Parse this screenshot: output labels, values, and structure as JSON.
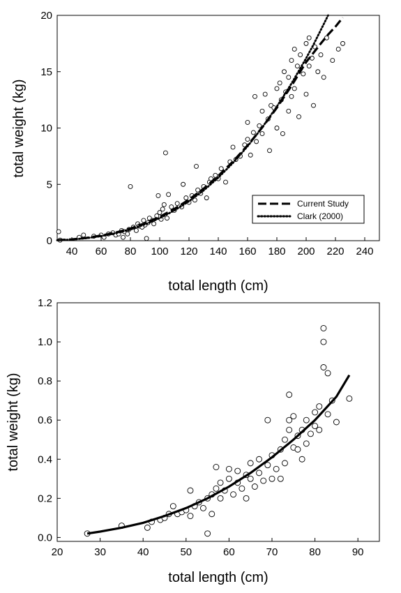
{
  "chart_data": [
    {
      "type": "scatter",
      "xlabel": "total length (cm)",
      "ylabel": "total weight (kg)",
      "xlim": [
        30,
        250
      ],
      "ylim": [
        0,
        20
      ],
      "xticks": [
        "40",
        "60",
        "80",
        "100",
        "120",
        "140",
        "160",
        "180",
        "200",
        "220",
        "240"
      ],
      "yticks": [
        "0",
        "5",
        "10",
        "15",
        "20"
      ],
      "legend_position": "bottom-right",
      "series": [
        {
          "name": "Current Study",
          "style": "dashed",
          "points": [
            [
              30,
              0.05
            ],
            [
              40,
              0.12
            ],
            [
              50,
              0.25
            ],
            [
              60,
              0.45
            ],
            [
              70,
              0.72
            ],
            [
              80,
              1.08
            ],
            [
              90,
              1.55
            ],
            [
              100,
              2.12
            ],
            [
              110,
              2.82
            ],
            [
              120,
              3.65
            ],
            [
              130,
              4.62
            ],
            [
              140,
              5.75
            ],
            [
              150,
              7.02
            ],
            [
              160,
              8.45
            ],
            [
              170,
              10.05
            ],
            [
              180,
              11.8
            ],
            [
              190,
              13.75
            ],
            [
              200,
              15.85
            ],
            [
              210,
              17.5
            ],
            [
              215,
              18.3
            ],
            [
              220,
              19.0
            ],
            [
              225,
              19.8
            ]
          ]
        },
        {
          "name": "Clark (2000)",
          "style": "dotted",
          "points": [
            [
              30,
              0.04
            ],
            [
              40,
              0.1
            ],
            [
              50,
              0.22
            ],
            [
              60,
              0.4
            ],
            [
              70,
              0.66
            ],
            [
              80,
              1.0
            ],
            [
              90,
              1.45
            ],
            [
              100,
              2.0
            ],
            [
              110,
              2.68
            ],
            [
              120,
              3.5
            ],
            [
              130,
              4.46
            ],
            [
              140,
              5.6
            ],
            [
              150,
              6.9
            ],
            [
              160,
              8.38
            ],
            [
              170,
              10.05
            ],
            [
              180,
              11.9
            ],
            [
              190,
              13.95
            ],
            [
              200,
              16.2
            ],
            [
              205,
              17.4
            ],
            [
              210,
              18.7
            ],
            [
              215,
              20.0
            ]
          ]
        },
        {
          "name": "observations",
          "style": "open-circles",
          "points": [
            [
              31,
              0.8
            ],
            [
              32,
              0.05
            ],
            [
              45,
              0.3
            ],
            [
              48,
              0.5
            ],
            [
              55,
              0.4
            ],
            [
              60,
              0.5
            ],
            [
              62,
              0.3
            ],
            [
              65,
              0.6
            ],
            [
              68,
              0.7
            ],
            [
              70,
              0.5
            ],
            [
              72,
              0.6
            ],
            [
              74,
              0.9
            ],
            [
              75,
              0.3
            ],
            [
              76,
              0.8
            ],
            [
              78,
              0.6
            ],
            [
              79,
              1.0
            ],
            [
              80,
              4.8
            ],
            [
              82,
              1.2
            ],
            [
              84,
              0.9
            ],
            [
              85,
              1.5
            ],
            [
              86,
              1.3
            ],
            [
              88,
              1.2
            ],
            [
              89,
              1.8
            ],
            [
              90,
              1.4
            ],
            [
              91,
              0.2
            ],
            [
              92,
              1.6
            ],
            [
              93,
              2.0
            ],
            [
              95,
              1.8
            ],
            [
              96,
              1.5
            ],
            [
              98,
              2.2
            ],
            [
              99,
              4.0
            ],
            [
              100,
              2.5
            ],
            [
              101,
              1.9
            ],
            [
              102,
              2.8
            ],
            [
              103,
              3.2
            ],
            [
              104,
              7.8
            ],
            [
              105,
              2.0
            ],
            [
              106,
              4.1
            ],
            [
              108,
              3.0
            ],
            [
              110,
              2.7
            ],
            [
              112,
              3.3
            ],
            [
              115,
              3.0
            ],
            [
              116,
              5.0
            ],
            [
              118,
              3.8
            ],
            [
              120,
              3.4
            ],
            [
              122,
              4.0
            ],
            [
              124,
              3.6
            ],
            [
              125,
              6.6
            ],
            [
              126,
              4.5
            ],
            [
              128,
              4.2
            ],
            [
              130,
              4.8
            ],
            [
              132,
              3.8
            ],
            [
              134,
              5.2
            ],
            [
              135,
              5.5
            ],
            [
              138,
              5.8
            ],
            [
              140,
              5.5
            ],
            [
              142,
              6.4
            ],
            [
              145,
              5.2
            ],
            [
              148,
              7.0
            ],
            [
              150,
              8.3
            ],
            [
              152,
              7.2
            ],
            [
              155,
              7.5
            ],
            [
              158,
              8.5
            ],
            [
              160,
              9.0
            ],
            [
              160,
              10.5
            ],
            [
              162,
              7.6
            ],
            [
              164,
              9.6
            ],
            [
              165,
              12.8
            ],
            [
              166,
              8.8
            ],
            [
              168,
              10.2
            ],
            [
              170,
              11.5
            ],
            [
              170,
              9.5
            ],
            [
              172,
              13.0
            ],
            [
              174,
              10.8
            ],
            [
              175,
              8.0
            ],
            [
              176,
              12.0
            ],
            [
              178,
              11.8
            ],
            [
              180,
              13.5
            ],
            [
              180,
              10.0
            ],
            [
              182,
              14.0
            ],
            [
              183,
              12.5
            ],
            [
              184,
              9.5
            ],
            [
              185,
              15.0
            ],
            [
              186,
              13.2
            ],
            [
              188,
              11.5
            ],
            [
              188,
              14.5
            ],
            [
              190,
              16.0
            ],
            [
              190,
              12.8
            ],
            [
              192,
              17.0
            ],
            [
              192,
              13.5
            ],
            [
              194,
              15.5
            ],
            [
              195,
              11.0
            ],
            [
              196,
              16.5
            ],
            [
              198,
              14.8
            ],
            [
              200,
              17.5
            ],
            [
              200,
              13.0
            ],
            [
              202,
              18.0
            ],
            [
              202,
              15.5
            ],
            [
              204,
              16.2
            ],
            [
              205,
              12.0
            ],
            [
              206,
              17.2
            ],
            [
              208,
              15.0
            ],
            [
              210,
              16.5
            ],
            [
              212,
              14.5
            ],
            [
              214,
              18.0
            ],
            [
              218,
              16.0
            ],
            [
              222,
              17.0
            ],
            [
              225,
              17.5
            ]
          ]
        }
      ]
    },
    {
      "type": "scatter",
      "xlabel": "total length (cm)",
      "ylabel": "total weight (kg)",
      "xlim": [
        20,
        95
      ],
      "ylim": [
        -0.02,
        1.2
      ],
      "xticks": [
        "20",
        "30",
        "40",
        "50",
        "60",
        "70",
        "80",
        "90"
      ],
      "yticks": [
        "0.0",
        "0.2",
        "0.4",
        "0.6",
        "0.8",
        "1.0",
        "1.2"
      ],
      "series": [
        {
          "name": "fit",
          "style": "solid",
          "points": [
            [
              27,
              0.02
            ],
            [
              30,
              0.03
            ],
            [
              35,
              0.05
            ],
            [
              40,
              0.075
            ],
            [
              45,
              0.11
            ],
            [
              50,
              0.15
            ],
            [
              55,
              0.2
            ],
            [
              60,
              0.26
            ],
            [
              65,
              0.33
            ],
            [
              70,
              0.41
            ],
            [
              75,
              0.5
            ],
            [
              80,
              0.6
            ],
            [
              85,
              0.72
            ],
            [
              88,
              0.83
            ]
          ]
        },
        {
          "name": "observations",
          "style": "open-circles",
          "points": [
            [
              27,
              0.02
            ],
            [
              35,
              0.06
            ],
            [
              41,
              0.05
            ],
            [
              42,
              0.08
            ],
            [
              44,
              0.09
            ],
            [
              45,
              0.1
            ],
            [
              46,
              0.12
            ],
            [
              47,
              0.16
            ],
            [
              48,
              0.12
            ],
            [
              49,
              0.13
            ],
            [
              50,
              0.14
            ],
            [
              51,
              0.24
            ],
            [
              51,
              0.11
            ],
            [
              52,
              0.16
            ],
            [
              53,
              0.18
            ],
            [
              54,
              0.15
            ],
            [
              55,
              0.02
            ],
            [
              55,
              0.2
            ],
            [
              56,
              0.22
            ],
            [
              56,
              0.12
            ],
            [
              57,
              0.25
            ],
            [
              57,
              0.36
            ],
            [
              58,
              0.2
            ],
            [
              58,
              0.28
            ],
            [
              59,
              0.24
            ],
            [
              60,
              0.3
            ],
            [
              60,
              0.35
            ],
            [
              61,
              0.22
            ],
            [
              62,
              0.28
            ],
            [
              62,
              0.34
            ],
            [
              63,
              0.25
            ],
            [
              64,
              0.32
            ],
            [
              64,
              0.2
            ],
            [
              65,
              0.3
            ],
            [
              65,
              0.38
            ],
            [
              66,
              0.26
            ],
            [
              67,
              0.33
            ],
            [
              67,
              0.4
            ],
            [
              68,
              0.29
            ],
            [
              69,
              0.37
            ],
            [
              69,
              0.6
            ],
            [
              70,
              0.3
            ],
            [
              70,
              0.42
            ],
            [
              71,
              0.35
            ],
            [
              72,
              0.45
            ],
            [
              72,
              0.3
            ],
            [
              73,
              0.38
            ],
            [
              73,
              0.5
            ],
            [
              74,
              0.73
            ],
            [
              74,
              0.55
            ],
            [
              74,
              0.6
            ],
            [
              75,
              0.46
            ],
            [
              75,
              0.62
            ],
            [
              76,
              0.45
            ],
            [
              76,
              0.52
            ],
            [
              77,
              0.4
            ],
            [
              77,
              0.55
            ],
            [
              78,
              0.6
            ],
            [
              78,
              0.48
            ],
            [
              79,
              0.53
            ],
            [
              80,
              0.64
            ],
            [
              80,
              0.57
            ],
            [
              81,
              0.55
            ],
            [
              81,
              0.67
            ],
            [
              82,
              1.07
            ],
            [
              82,
              1.0
            ],
            [
              82,
              0.87
            ],
            [
              83,
              0.84
            ],
            [
              83,
              0.63
            ],
            [
              84,
              0.7
            ],
            [
              85,
              0.59
            ],
            [
              88,
              0.71
            ]
          ]
        }
      ]
    }
  ]
}
